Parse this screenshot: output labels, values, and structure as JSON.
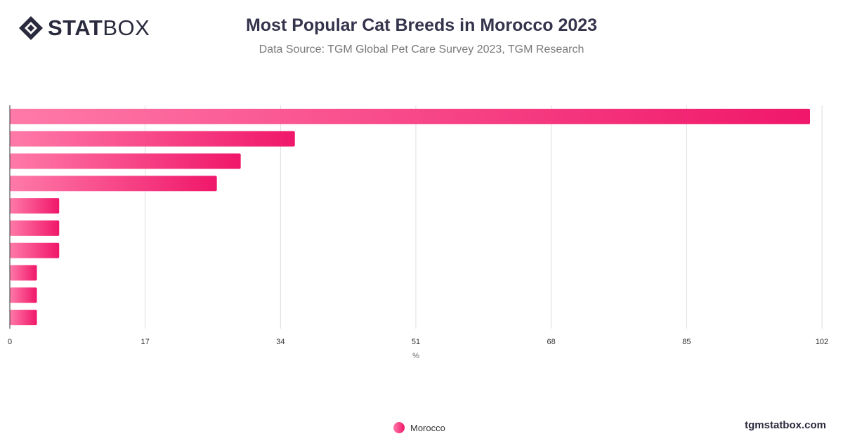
{
  "brand": {
    "logo_bold": "STAT",
    "logo_light": "BOX",
    "url": "tgmstatbox.com"
  },
  "header": {
    "title": "Most Popular Cat Breeds in Morocco 2023",
    "subtitle": "Data Source: TGM Global Pet Care Survey 2023, TGM Research"
  },
  "chart_data": {
    "type": "bar",
    "orientation": "horizontal",
    "title": "Most Popular Cat Breeds in Morocco 2023",
    "subtitle": "Data Source: TGM Global Pet Care Survey 2023, TGM Research",
    "xlabel": "%",
    "ylabel": "",
    "xlim": [
      0,
      102
    ],
    "xticks": [
      0,
      17,
      34,
      51,
      68,
      85,
      102
    ],
    "categories": [
      "",
      "",
      "",
      "",
      "",
      "",
      "",
      "",
      "",
      ""
    ],
    "series": [
      {
        "name": "Morocco",
        "values": [
          100.5,
          35.8,
          29,
          26,
          6.2,
          6.2,
          6.2,
          3.4,
          3.4,
          3.4
        ]
      }
    ],
    "grid": true,
    "legend": "bottom-center",
    "colors": {
      "bar_start": "#ff7aa8",
      "bar_end": "#f0176a",
      "grid": "#dddddd",
      "axis": "#333333",
      "text": "#333333"
    }
  }
}
